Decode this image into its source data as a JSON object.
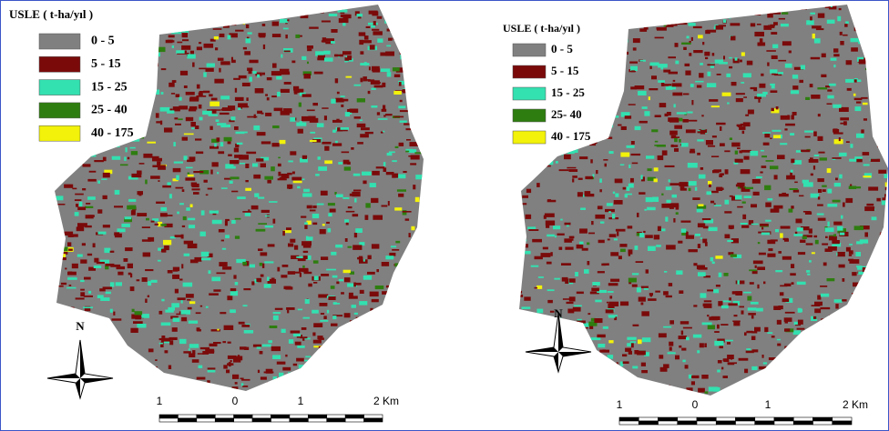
{
  "maps": [
    {
      "legend": {
        "title": "USLE ( t-ha/yıl )",
        "items": [
          {
            "label": "0 - 5",
            "color": "#808080"
          },
          {
            "label": "5 - 15",
            "color": "#7a0a0a"
          },
          {
            "label": "15 - 25",
            "color": "#33e0b0"
          },
          {
            "label": "25 - 40",
            "color": "#2e7d10"
          },
          {
            "label": "40 - 175",
            "color": "#f2f20a"
          }
        ]
      },
      "north": "N",
      "scale": [
        "1",
        "0",
        "1",
        "2 Km"
      ]
    },
    {
      "legend": {
        "title": "USLE ( t-ha/yıl )",
        "items": [
          {
            "label": "0 - 5",
            "color": "#808080"
          },
          {
            "label": "5 - 15",
            "color": "#7a0a0a"
          },
          {
            "label": "15 - 25",
            "color": "#33e0b0"
          },
          {
            "label": "25- 40",
            "color": "#2e7d10"
          },
          {
            "label": "40 - 175",
            "color": "#f2f20a"
          }
        ]
      },
      "north": "N",
      "scale": [
        "1",
        "0",
        "1",
        "2 Km"
      ]
    }
  ]
}
